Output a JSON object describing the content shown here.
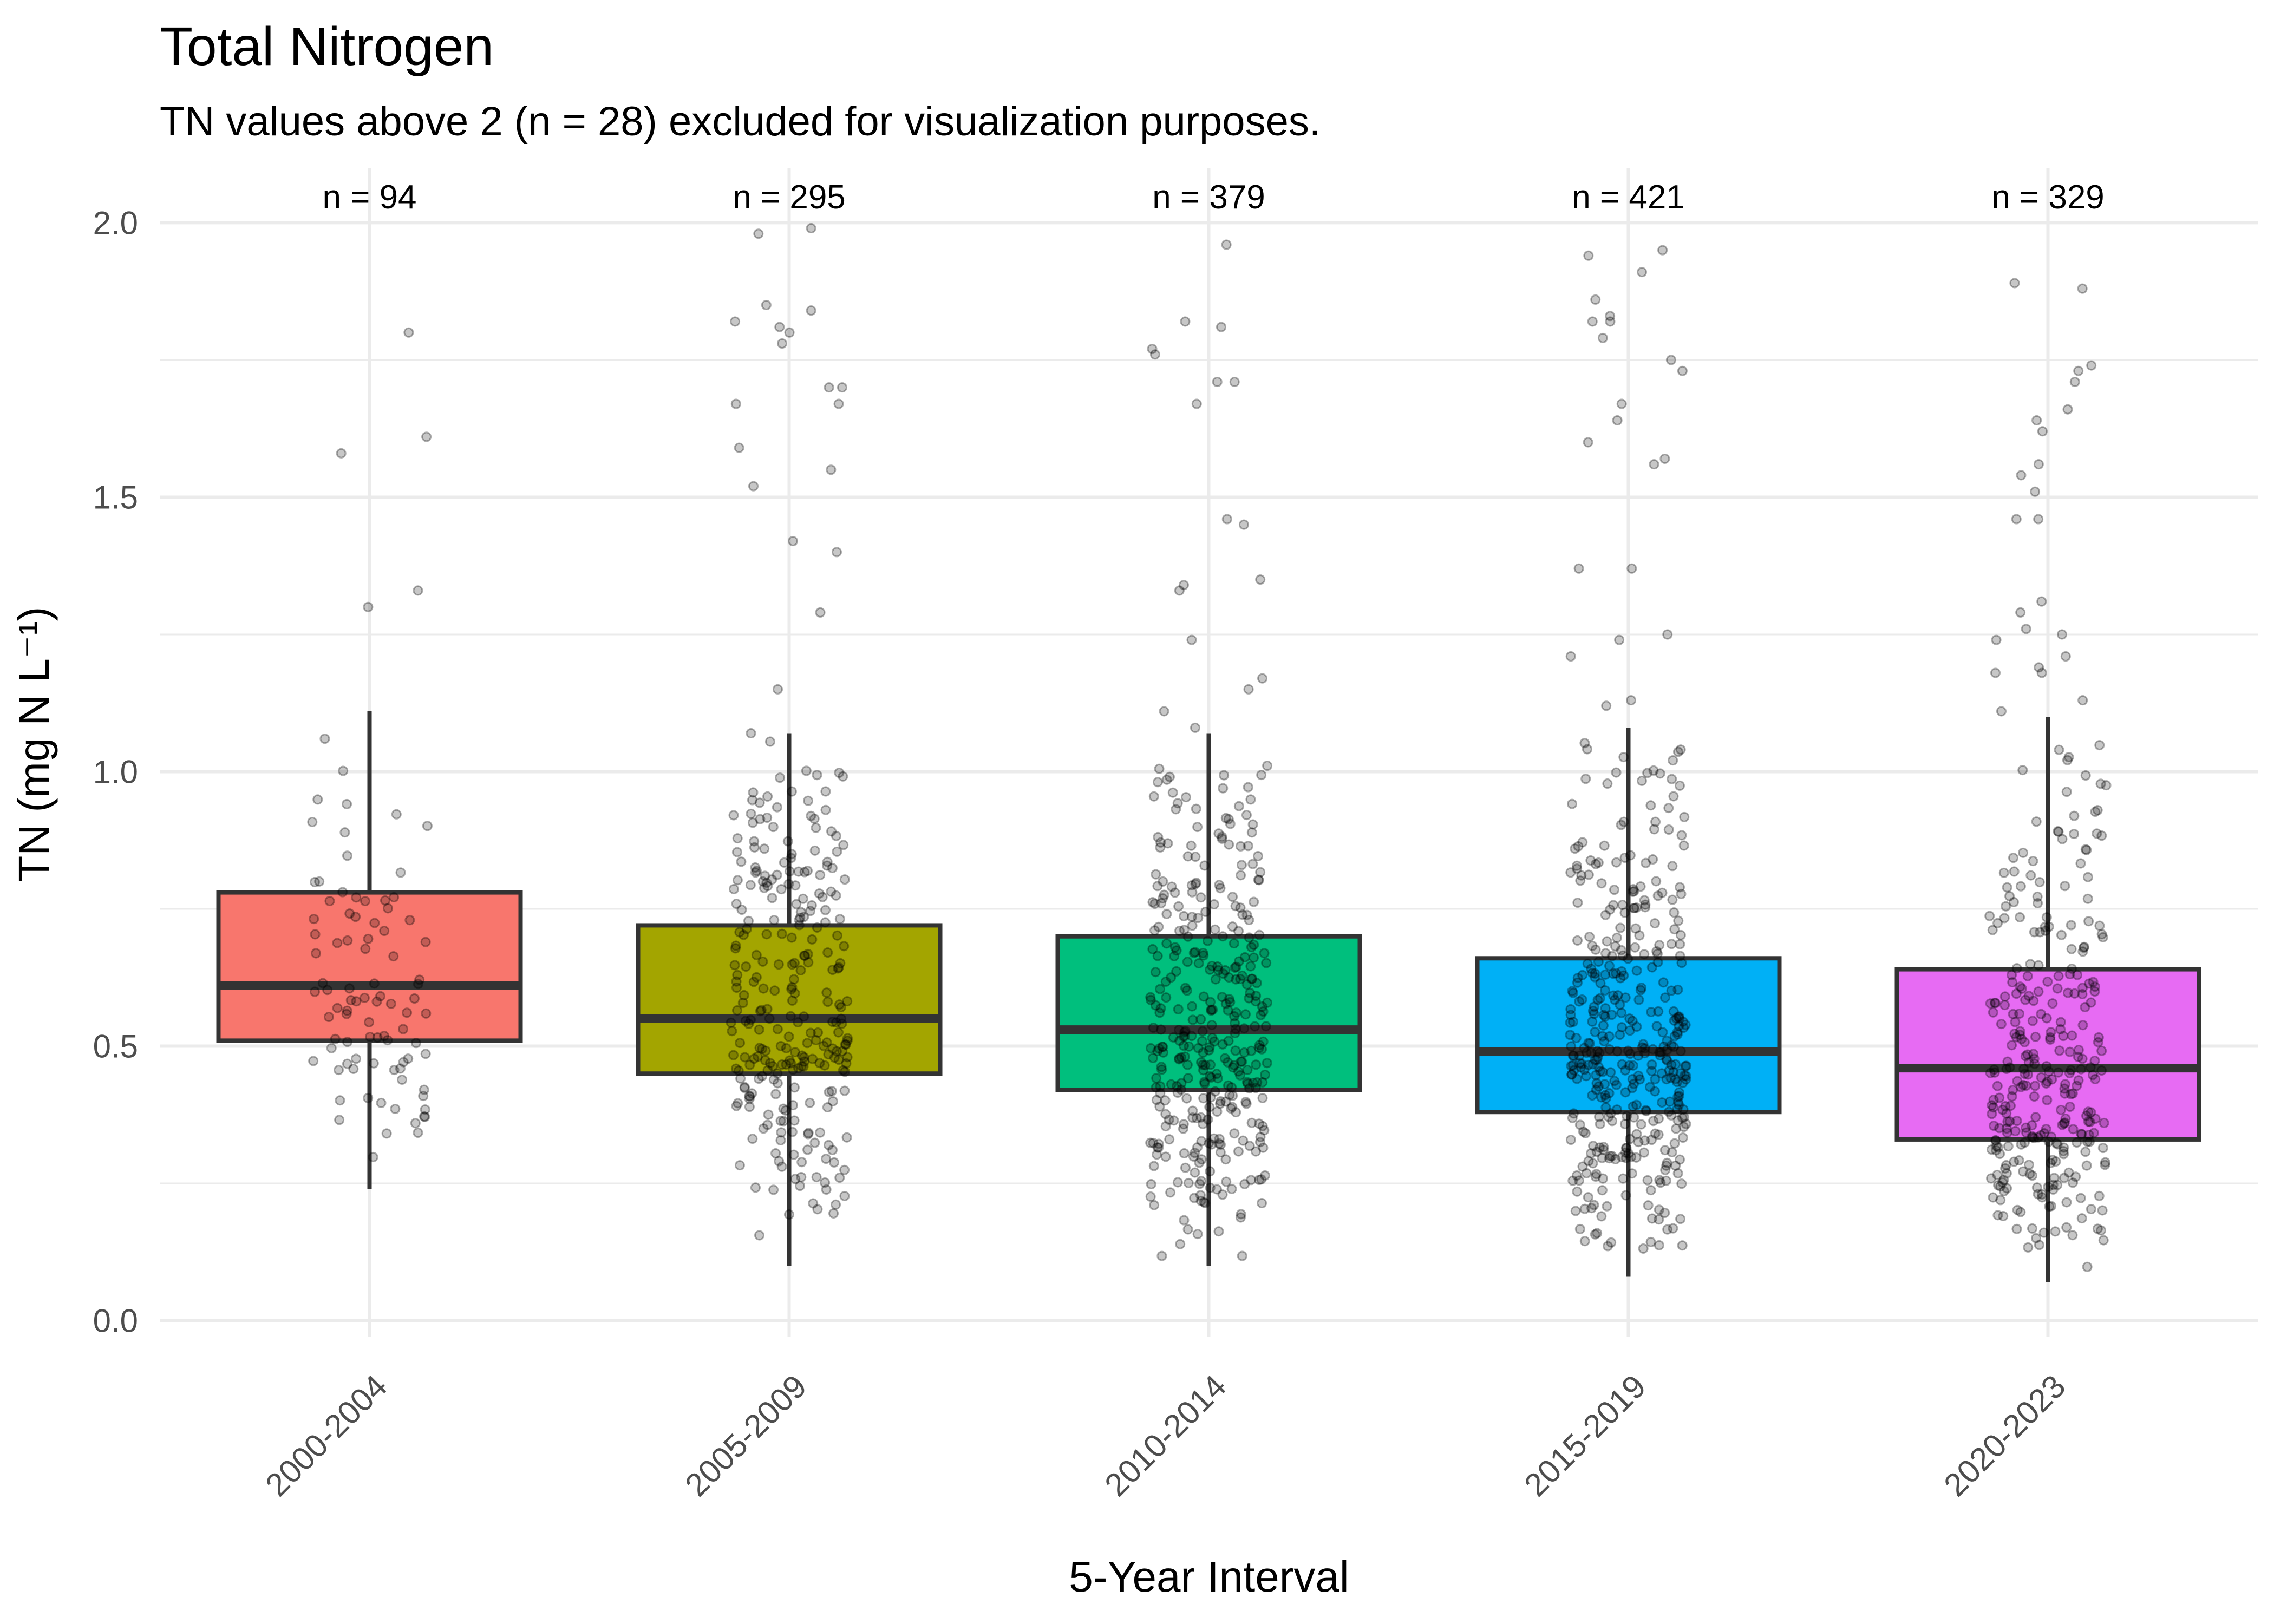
{
  "chart_data": {
    "type": "box",
    "title": "Total Nitrogen",
    "subtitle": "TN values above 2 (n = 28) excluded for visualization purposes.",
    "xlabel": "5-Year Interval",
    "ylabel": "TN (mg N L⁻¹)",
    "ylim": [
      -0.03,
      2.1
    ],
    "y_ticks": [
      0.0,
      0.5,
      1.0,
      1.5,
      2.0
    ],
    "y_tick_labels": [
      "0.0",
      "0.5",
      "1.0",
      "1.5",
      "2.0"
    ],
    "grid": true,
    "legend": "none",
    "categories": [
      "2000-2004",
      "2005-2009",
      "2010-2014",
      "2015-2019",
      "2020-2023"
    ],
    "count_labels": [
      "n = 94",
      "n = 295",
      "n = 379",
      "n = 421",
      "n = 329"
    ],
    "colors": [
      "#F8766D",
      "#A3A500",
      "#00BF7D",
      "#00B0F6",
      "#E76BF3"
    ],
    "boxes": [
      {
        "category": "2000-2004",
        "n": 94,
        "whisker_low": 0.24,
        "q1": 0.51,
        "median": 0.61,
        "q3": 0.78,
        "whisker_high": 1.11
      },
      {
        "category": "2005-2009",
        "n": 295,
        "whisker_low": 0.1,
        "q1": 0.45,
        "median": 0.55,
        "q3": 0.72,
        "whisker_high": 1.07
      },
      {
        "category": "2010-2014",
        "n": 379,
        "whisker_low": 0.1,
        "q1": 0.42,
        "median": 0.53,
        "q3": 0.7,
        "whisker_high": 1.07
      },
      {
        "category": "2015-2019",
        "n": 421,
        "whisker_low": 0.08,
        "q1": 0.38,
        "median": 0.49,
        "q3": 0.66,
        "whisker_high": 1.08
      },
      {
        "category": "2020-2023",
        "n": 329,
        "whisker_low": 0.07,
        "q1": 0.33,
        "median": 0.46,
        "q3": 0.64,
        "whisker_high": 1.1
      }
    ],
    "outlier_points": [
      [
        1.8,
        1.61,
        1.58,
        1.33,
        1.3
      ],
      [
        1.99,
        1.98,
        1.85,
        1.84,
        1.82,
        1.81,
        1.8,
        1.78,
        1.7,
        1.7,
        1.67,
        1.67,
        1.59,
        1.55,
        1.52,
        1.42,
        1.4,
        1.29,
        1.15,
        1.07
      ],
      [
        1.96,
        1.82,
        1.81,
        1.77,
        1.76,
        1.71,
        1.71,
        1.67,
        1.46,
        1.45,
        1.35,
        1.34,
        1.33,
        1.24,
        1.17,
        1.15,
        1.11,
        1.08
      ],
      [
        1.95,
        1.94,
        1.91,
        1.86,
        1.83,
        1.82,
        1.82,
        1.79,
        1.75,
        1.73,
        1.67,
        1.64,
        1.6,
        1.57,
        1.56,
        1.37,
        1.37,
        1.25,
        1.24,
        1.21,
        1.13,
        1.12
      ],
      [
        1.89,
        1.88,
        1.74,
        1.73,
        1.71,
        1.66,
        1.64,
        1.62,
        1.56,
        1.54,
        1.51,
        1.46,
        1.46,
        1.31,
        1.29,
        1.26,
        1.25,
        1.24,
        1.21,
        1.19,
        1.18,
        1.18,
        1.13,
        1.11
      ]
    ]
  }
}
